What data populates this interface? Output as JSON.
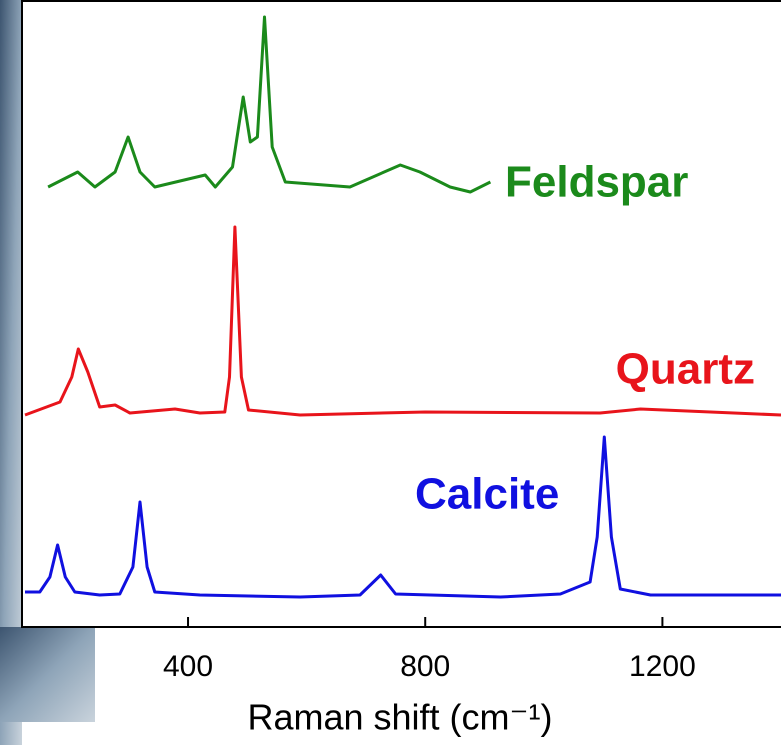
{
  "chart_data": {
    "type": "line",
    "x_label": "Raman shift (cm⁻¹)",
    "xlim": [
      120,
      1400
    ],
    "xticks": [
      400,
      800,
      1200
    ],
    "series": [
      {
        "name": "Feldspar",
        "color": "#1b8a1b",
        "x": [
          164,
          214,
          243,
          277,
          299,
          319,
          344,
          429,
          446,
          475,
          493,
          505,
          517,
          529,
          542,
          564,
          673,
          758,
          791,
          842,
          876,
          910
        ],
        "values": [
          440,
          455,
          440,
          455,
          490,
          455,
          440,
          452,
          440,
          460,
          530,
          485,
          490,
          610,
          480,
          445,
          440,
          462,
          455,
          440,
          435,
          445
        ]
      },
      {
        "name": "Quartz",
        "color": "#e8141b",
        "x": [
          125,
          184,
          204,
          215,
          231,
          251,
          277,
          302,
          378,
          420,
          462,
          470,
          479,
          490,
          502,
          589,
          800,
          1095,
          1163,
          1400
        ],
        "values": [
          212,
          225,
          250,
          278,
          255,
          220,
          222,
          214,
          218,
          214,
          215,
          250,
          400,
          250,
          217,
          212,
          215,
          214,
          218,
          212
        ]
      },
      {
        "name": "Calcite",
        "color": "#1010e0",
        "x": [
          125,
          150,
          167,
          180,
          193,
          209,
          251,
          285,
          307,
          319,
          331,
          344,
          420,
          589,
          690,
          725,
          750,
          927,
          1028,
          1078,
          1090,
          1102,
          1114,
          1129,
          1180,
          1400
        ],
        "values": [
          35,
          35,
          50,
          82,
          50,
          35,
          32,
          33,
          60,
          125,
          60,
          35,
          32,
          30,
          32,
          52,
          33,
          30,
          33,
          45,
          90,
          190,
          90,
          38,
          32,
          32
        ]
      }
    ]
  }
}
